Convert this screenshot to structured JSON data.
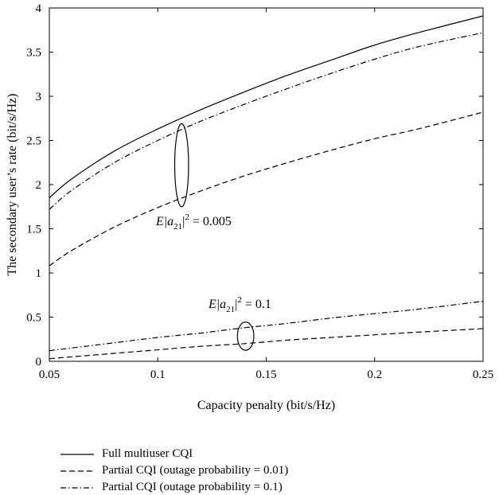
{
  "chart_data": {
    "type": "line",
    "xlabel": "Capacity penalty (bit/s/Hz)",
    "ylabel": "The secondary user’s rate (bit/s/Hz)",
    "xlim": [
      0.05,
      0.25
    ],
    "ylim": [
      0,
      4
    ],
    "xticks": [
      0.05,
      0.1,
      0.15,
      0.2,
      0.25
    ],
    "xtick_labels": [
      "0.05",
      "0.1",
      "0.15",
      "0.2",
      "0.25"
    ],
    "yticks": [
      0,
      0.5,
      1,
      1.5,
      2,
      2.5,
      3,
      3.5,
      4
    ],
    "ytick_labels": [
      "0",
      "0.5",
      "1",
      "1.5",
      "2",
      "2.5",
      "3",
      "3.5",
      "4"
    ],
    "grid": false,
    "legend_position": "below",
    "x": [
      0.05,
      0.06,
      0.08,
      0.1,
      0.12,
      0.14,
      0.16,
      0.18,
      0.2,
      0.22,
      0.25
    ],
    "series": [
      {
        "name": "Full multiuser CQI",
        "style": "solid",
        "group": "0.005",
        "values": [
          1.85,
          2.06,
          2.38,
          2.63,
          2.85,
          3.05,
          3.24,
          3.41,
          3.58,
          3.72,
          3.91
        ]
      },
      {
        "name": "Partial CQI (outage probability = 0.01)",
        "style": "dashed",
        "group": "0.005",
        "values": [
          1.08,
          1.25,
          1.52,
          1.74,
          1.93,
          2.1,
          2.25,
          2.39,
          2.52,
          2.63,
          2.82
        ]
      },
      {
        "name": "Partial CQI (outage probability = 0.1)",
        "style": "dashdot",
        "group": "0.005",
        "values": [
          1.72,
          1.93,
          2.25,
          2.5,
          2.72,
          2.91,
          3.09,
          3.26,
          3.42,
          3.56,
          3.72
        ]
      },
      {
        "name": "Partial CQI (outage probability = 0.01)",
        "style": "dashed",
        "group": "0.1",
        "values": [
          0.03,
          0.05,
          0.09,
          0.13,
          0.17,
          0.2,
          0.24,
          0.27,
          0.3,
          0.33,
          0.37
        ]
      },
      {
        "name": "Partial CQI (outage probability = 0.1)",
        "style": "dashdot",
        "group": "0.1",
        "values": [
          0.12,
          0.15,
          0.21,
          0.27,
          0.32,
          0.38,
          0.43,
          0.49,
          0.54,
          0.59,
          0.68
        ]
      }
    ],
    "annotations": [
      {
        "text": "E|a21|² = 0.005",
        "lead": "E|a",
        "sub": "21",
        "tail": "|",
        "sup": "2",
        "rest": " = 0.005",
        "ellipse": {
          "cx": 0.111,
          "cy": 2.22,
          "rx": 0.0032,
          "ry": 0.47
        }
      },
      {
        "text": "E|a21|² = 0.1",
        "lead": "E|a",
        "sub": "21",
        "tail": "|",
        "sup": "2",
        "rest": " = 0.1",
        "ellipse": {
          "cx": 0.1405,
          "cy": 0.285,
          "rx": 0.0038,
          "ry": 0.16
        }
      }
    ],
    "legend": [
      {
        "label": "Full multiuser CQI",
        "style": "solid"
      },
      {
        "label": "Partial CQI (outage probability = 0.01)",
        "style": "dashed"
      },
      {
        "label": "Partial CQI (outage probability = 0.1)",
        "style": "dashdot"
      }
    ]
  }
}
